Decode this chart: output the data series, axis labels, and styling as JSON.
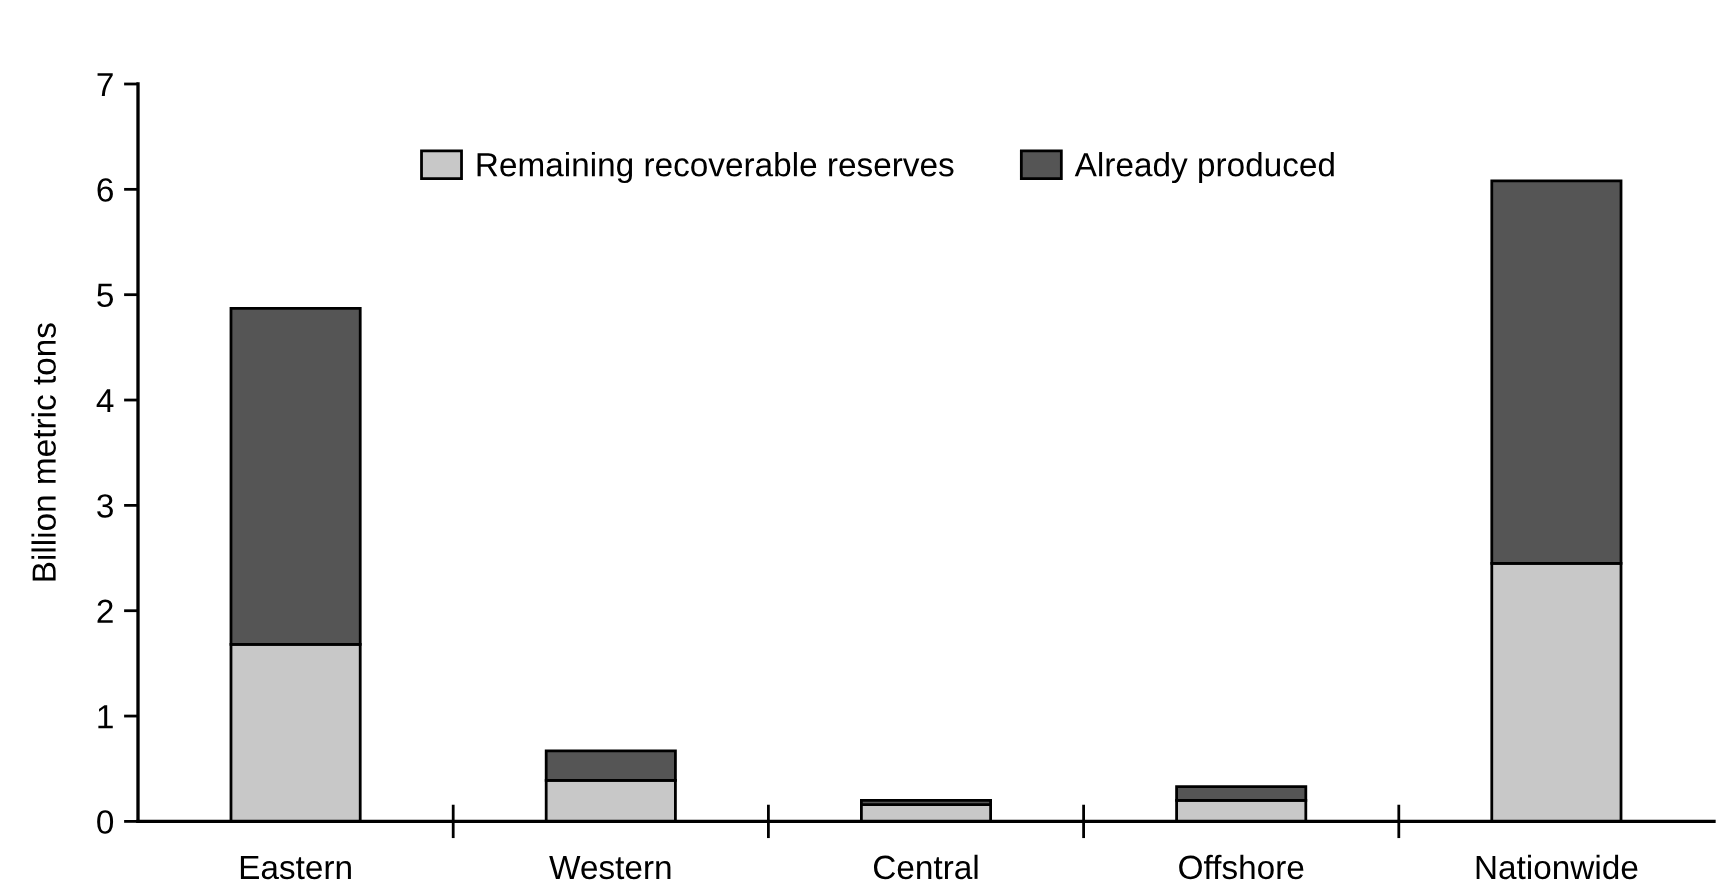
{
  "chart_data": {
    "type": "bar",
    "stacked": true,
    "ylabel": "Billion metric tons",
    "categories": [
      "Eastern",
      "Western",
      "Central",
      "Offshore",
      "Nationwide"
    ],
    "series": [
      {
        "name": "Remaining recoverable reserves",
        "color": "#c8c8c8",
        "values": [
          1.68,
          0.39,
          0.16,
          0.2,
          2.45
        ]
      },
      {
        "name": "Already produced",
        "color": "#555555",
        "values": [
          3.19,
          0.28,
          0.04,
          0.13,
          3.63
        ]
      }
    ],
    "ylim": [
      0,
      7
    ],
    "yticks": [
      0,
      1,
      2,
      3,
      4,
      5,
      6,
      7
    ],
    "grid": false,
    "legend": "top"
  }
}
